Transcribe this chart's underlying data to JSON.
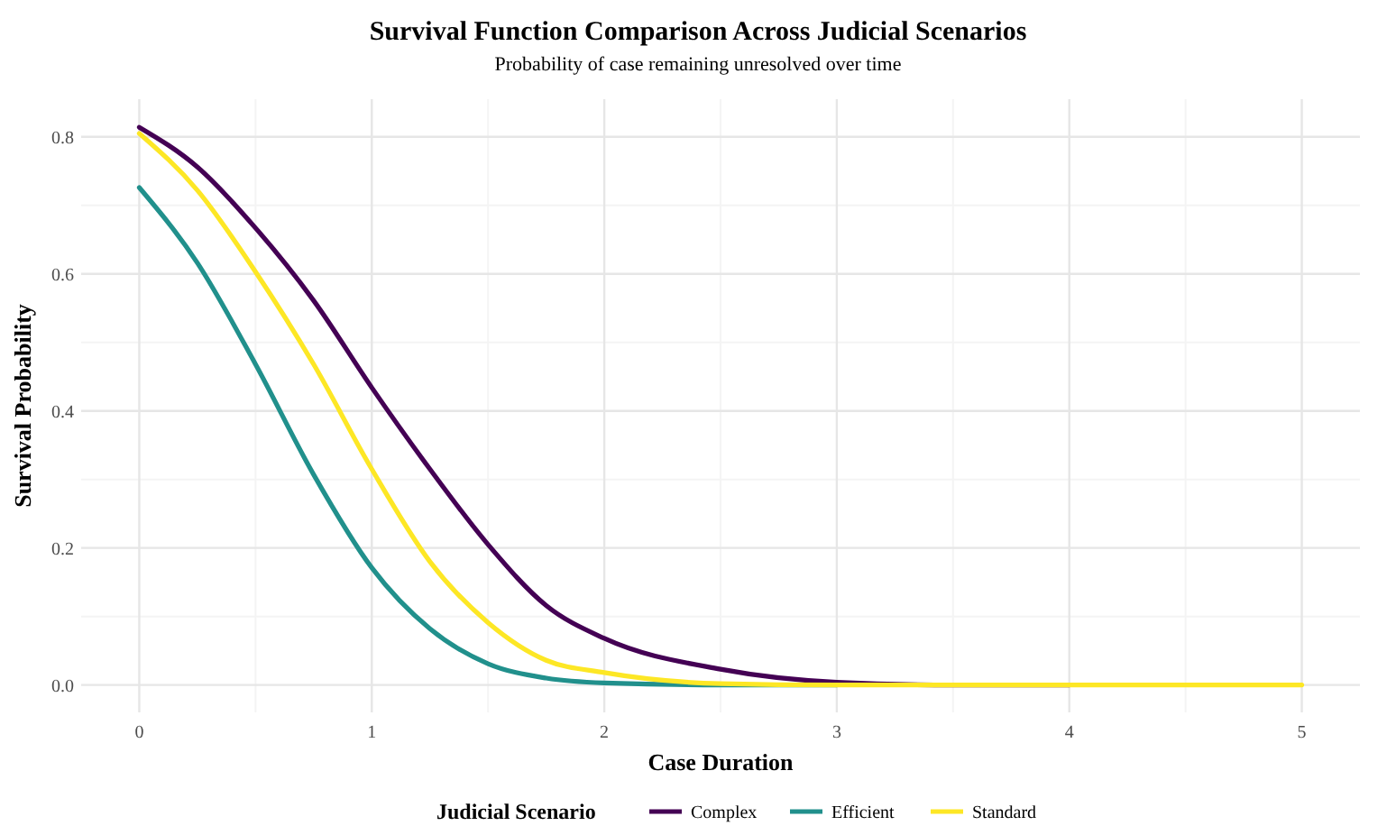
{
  "chart_data": {
    "type": "line",
    "title": "Survival Function Comparison Across Judicial Scenarios",
    "subtitle": "Probability of case remaining unresolved over time",
    "xlabel": "Case Duration",
    "ylabel": "Survival Probability",
    "legend_title": "Judicial Scenario",
    "legend": "bottom",
    "grid": true,
    "marker": "none",
    "line_style": "solid",
    "x": [
      0,
      0.25,
      0.5,
      0.75,
      1,
      1.25,
      1.5,
      1.75,
      2,
      2.5,
      3,
      3.5,
      4,
      4.5,
      5
    ],
    "xlim": [
      -0.25,
      5.25
    ],
    "xticks": [
      0,
      1,
      2,
      3,
      4,
      5
    ],
    "ylim": [
      -0.04,
      0.855
    ],
    "yticks": [
      {
        "value": 0,
        "label": "0.0"
      },
      {
        "value": 0.2,
        "label": "0.2"
      },
      {
        "value": 0.4,
        "label": "0.4"
      },
      {
        "value": 0.6,
        "label": "0.6"
      },
      {
        "value": 0.8,
        "label": "0.8"
      }
    ],
    "series": [
      {
        "name": "Complex",
        "color": "#440154",
        "values": [
          0.814,
          0.756,
          0.667,
          0.561,
          0.434,
          0.315,
          0.205,
          0.116,
          0.068,
          0.023,
          0.004,
          0,
          0,
          null,
          null
        ]
      },
      {
        "name": "Efficient",
        "color": "#21908c",
        "values": [
          0.726,
          0.616,
          0.468,
          0.307,
          0.171,
          0.082,
          0.031,
          0.01,
          0.003,
          0,
          0,
          null,
          null,
          null,
          null
        ]
      },
      {
        "name": "Standard",
        "color": "#fde725",
        "values": [
          0.805,
          0.722,
          0.603,
          0.468,
          0.315,
          0.18,
          0.091,
          0.036,
          0.018,
          0.002,
          0,
          0,
          0,
          0,
          0
        ]
      }
    ]
  }
}
